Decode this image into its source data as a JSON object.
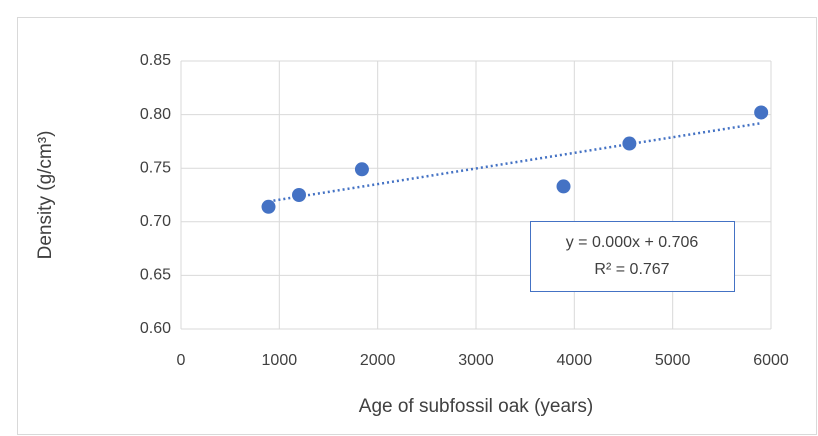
{
  "chart_data": {
    "type": "scatter",
    "x_label": "Age of subfossil oak (years)",
    "y_label": "Density (g/cm³)",
    "series": [
      {
        "color": "#4472c4",
        "x": [
          890,
          1200,
          1840,
          3890,
          4560,
          5900
        ],
        "values": [
          0.714,
          0.725,
          0.749,
          0.733,
          0.773,
          0.802
        ]
      }
    ],
    "trendline": {
      "x": [
        890,
        5900
      ],
      "values": [
        0.719,
        0.792
      ],
      "color": "#4472c4",
      "equation": "y = 0.000x + 0.706",
      "r_squared": "R² = 0.767"
    },
    "xlim": [
      0,
      6000
    ],
    "xticks": [
      0,
      1000,
      2000,
      3000,
      4000,
      5000,
      6000
    ],
    "ylim": [
      0.6,
      0.85
    ],
    "yticks": [
      {
        "value": 0.6,
        "label": "0.60"
      },
      0.65,
      {
        "value": 0.7,
        "label": "0.70"
      },
      0.75,
      {
        "value": 0.8,
        "label": "0.80"
      },
      0.85
    ],
    "grid": true
  }
}
